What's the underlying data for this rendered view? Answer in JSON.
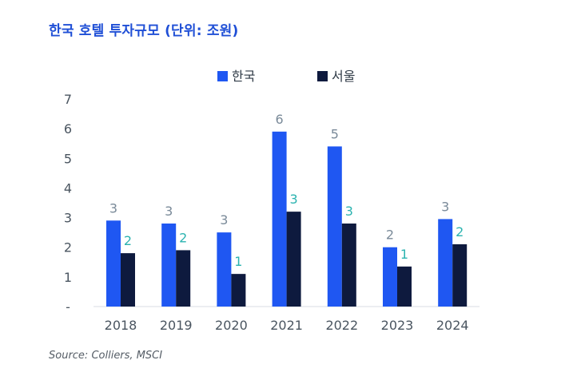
{
  "title": "한국 호텔 투자규모 (단위: 조원)",
  "source": "Source: Colliers, MSCI",
  "colors": {
    "title": "#1f4fd6",
    "korea": "#1f57f2",
    "seoul": "#0e1a3e",
    "label_korea": "#7a8a99",
    "label_seoul": "#2bb3b0"
  },
  "chart_data": {
    "type": "bar",
    "title": "한국 호텔 투자규모 (단위: 조원)",
    "categories": [
      "2018",
      "2019",
      "2020",
      "2021",
      "2022",
      "2023",
      "2024"
    ],
    "series": [
      {
        "name": "한국",
        "values": [
          2.9,
          2.8,
          2.5,
          5.9,
          5.4,
          2.0,
          2.95
        ],
        "labels": [
          "3",
          "3",
          "3",
          "6",
          "5",
          "2",
          "3"
        ]
      },
      {
        "name": "서울",
        "values": [
          1.8,
          1.9,
          1.1,
          3.2,
          2.8,
          1.35,
          2.1
        ],
        "labels": [
          "2",
          "2",
          "1",
          "3",
          "3",
          "1",
          "2"
        ]
      }
    ],
    "yticks": [
      "-",
      "1",
      "2",
      "3",
      "4",
      "5",
      "6",
      "7"
    ],
    "ylim": [
      0,
      7
    ],
    "legend_position": "top-center"
  }
}
